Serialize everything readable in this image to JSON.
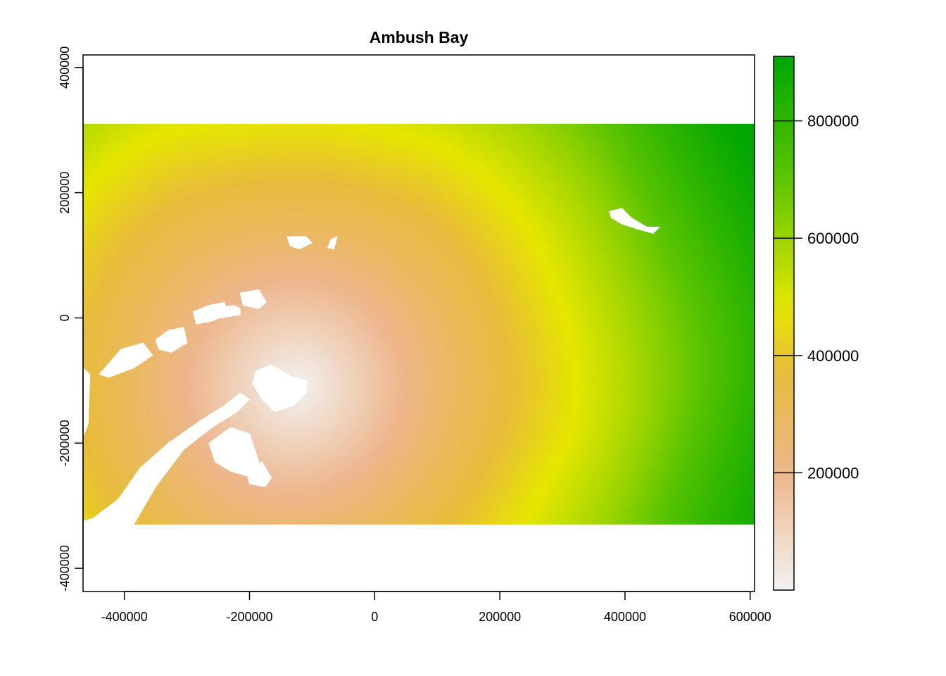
{
  "chart_data": {
    "type": "heatmap",
    "title": "Ambush Bay",
    "xlabel": "",
    "ylabel": "",
    "xlim": [
      -466000,
      607000
    ],
    "ylim": [
      -437000,
      420000
    ],
    "raster_extent": {
      "x": [
        -466000,
        607000
      ],
      "y": [
        -330000,
        310000
      ]
    },
    "x_ticks": [
      {
        "value": -400000,
        "label": "-400000"
      },
      {
        "value": -200000,
        "label": "-200000"
      },
      {
        "value": 0,
        "label": "0"
      },
      {
        "value": 200000,
        "label": "200000"
      },
      {
        "value": 400000,
        "label": "400000"
      },
      {
        "value": 600000,
        "label": "600000"
      }
    ],
    "y_ticks": [
      {
        "value": -400000,
        "label": "-400000"
      },
      {
        "value": -200000,
        "label": "-200000"
      },
      {
        "value": 0,
        "label": "0"
      },
      {
        "value": 200000,
        "label": "200000"
      },
      {
        "value": 400000,
        "label": "400000"
      }
    ],
    "legend": {
      "position": "right",
      "range": [
        0,
        910000
      ],
      "ticks": [
        {
          "value": 200000,
          "label": "200000"
        },
        {
          "value": 400000,
          "label": "400000"
        },
        {
          "value": 600000,
          "label": "600000"
        },
        {
          "value": 800000,
          "label": "800000"
        }
      ],
      "color_stops": [
        {
          "value": 0,
          "color": "#f2f2f2"
        },
        {
          "value": 200000,
          "color": "#edb68c"
        },
        {
          "value": 380000,
          "color": "#e8bc3a"
        },
        {
          "value": 480000,
          "color": "#e6e600"
        },
        {
          "value": 700000,
          "color": "#5cc400"
        },
        {
          "value": 910000,
          "color": "#00a600"
        }
      ]
    },
    "distance_source": [
      -125000,
      -110000
    ],
    "field_anchors": [
      {
        "x": -466000,
        "y": 310000,
        "value": 560000
      },
      {
        "x": -100000,
        "y": 310000,
        "value": 470000
      },
      {
        "x": 200000,
        "y": 200000,
        "value": 480000
      },
      {
        "x": 320000,
        "y": -110000,
        "value": 480000
      },
      {
        "x": 600000,
        "y": 250000,
        "value": 900000
      },
      {
        "x": 600000,
        "y": -330000,
        "value": 860000
      },
      {
        "x": 240000,
        "y": -330000,
        "value": 480000
      },
      {
        "x": -380000,
        "y": -330000,
        "value": 370000
      }
    ],
    "masked_land": [
      {
        "name": "peninsula",
        "points": [
          [
            -466000,
            -330000
          ],
          [
            -385000,
            -330000
          ],
          [
            -350000,
            -270000
          ],
          [
            -305000,
            -210000
          ],
          [
            -260000,
            -175000
          ],
          [
            -220000,
            -150000
          ],
          [
            -200000,
            -130000
          ],
          [
            -215000,
            -120000
          ],
          [
            -240000,
            -140000
          ],
          [
            -280000,
            -165000
          ],
          [
            -330000,
            -200000
          ],
          [
            -375000,
            -240000
          ],
          [
            -410000,
            -290000
          ],
          [
            -450000,
            -320000
          ],
          [
            -466000,
            -325000
          ]
        ]
      },
      {
        "name": "west-coast-sliver",
        "points": [
          [
            -466000,
            -80000
          ],
          [
            -455000,
            -90000
          ],
          [
            -458000,
            -170000
          ],
          [
            -466000,
            -190000
          ]
        ]
      },
      {
        "name": "island-south-1",
        "points": [
          [
            -265000,
            -200000
          ],
          [
            -230000,
            -175000
          ],
          [
            -200000,
            -185000
          ],
          [
            -185000,
            -230000
          ],
          [
            -195000,
            -255000
          ],
          [
            -230000,
            -245000
          ],
          [
            -255000,
            -230000
          ]
        ]
      },
      {
        "name": "island-south-2",
        "points": [
          [
            -205000,
            -245000
          ],
          [
            -180000,
            -230000
          ],
          [
            -165000,
            -255000
          ],
          [
            -175000,
            -270000
          ],
          [
            -200000,
            -265000
          ]
        ]
      },
      {
        "name": "island-center",
        "points": [
          [
            -190000,
            -85000
          ],
          [
            -165000,
            -75000
          ],
          [
            -130000,
            -95000
          ],
          [
            -108000,
            -100000
          ],
          [
            -110000,
            -120000
          ],
          [
            -130000,
            -140000
          ],
          [
            -160000,
            -150000
          ],
          [
            -180000,
            -130000
          ],
          [
            -195000,
            -105000
          ]
        ]
      },
      {
        "name": "arc-1",
        "points": [
          [
            -440000,
            -90000
          ],
          [
            -405000,
            -50000
          ],
          [
            -370000,
            -40000
          ],
          [
            -355000,
            -60000
          ],
          [
            -385000,
            -80000
          ],
          [
            -425000,
            -95000
          ]
        ]
      },
      {
        "name": "arc-2",
        "points": [
          [
            -350000,
            -35000
          ],
          [
            -330000,
            -20000
          ],
          [
            -305000,
            -15000
          ],
          [
            -300000,
            -40000
          ],
          [
            -325000,
            -55000
          ],
          [
            -345000,
            -50000
          ]
        ]
      },
      {
        "name": "arc-3",
        "points": [
          [
            -290000,
            10000
          ],
          [
            -265000,
            20000
          ],
          [
            -240000,
            25000
          ],
          [
            -235000,
            5000
          ],
          [
            -260000,
            -5000
          ],
          [
            -285000,
            -10000
          ]
        ]
      },
      {
        "name": "arc-4",
        "points": [
          [
            -255000,
            15000
          ],
          [
            -225000,
            20000
          ],
          [
            -215000,
            15000
          ],
          [
            -215000,
            5000
          ],
          [
            -245000,
            0
          ]
        ]
      },
      {
        "name": "arc-5",
        "points": [
          [
            -215000,
            40000
          ],
          [
            -185000,
            45000
          ],
          [
            -173000,
            25000
          ],
          [
            -185000,
            15000
          ],
          [
            -210000,
            20000
          ]
        ]
      },
      {
        "name": "north-1",
        "points": [
          [
            -140000,
            130000
          ],
          [
            -110000,
            130000
          ],
          [
            -100000,
            120000
          ],
          [
            -120000,
            110000
          ],
          [
            -135000,
            115000
          ]
        ]
      },
      {
        "name": "north-2",
        "points": [
          [
            -70000,
            125000
          ],
          [
            -60000,
            130000
          ],
          [
            -65000,
            110000
          ],
          [
            -75000,
            112000
          ]
        ]
      },
      {
        "name": "northeast",
        "points": [
          [
            375000,
            170000
          ],
          [
            395000,
            175000
          ],
          [
            410000,
            160000
          ],
          [
            435000,
            145000
          ],
          [
            455000,
            145000
          ],
          [
            445000,
            135000
          ],
          [
            420000,
            142000
          ],
          [
            395000,
            150000
          ],
          [
            378000,
            160000
          ]
        ]
      }
    ]
  }
}
